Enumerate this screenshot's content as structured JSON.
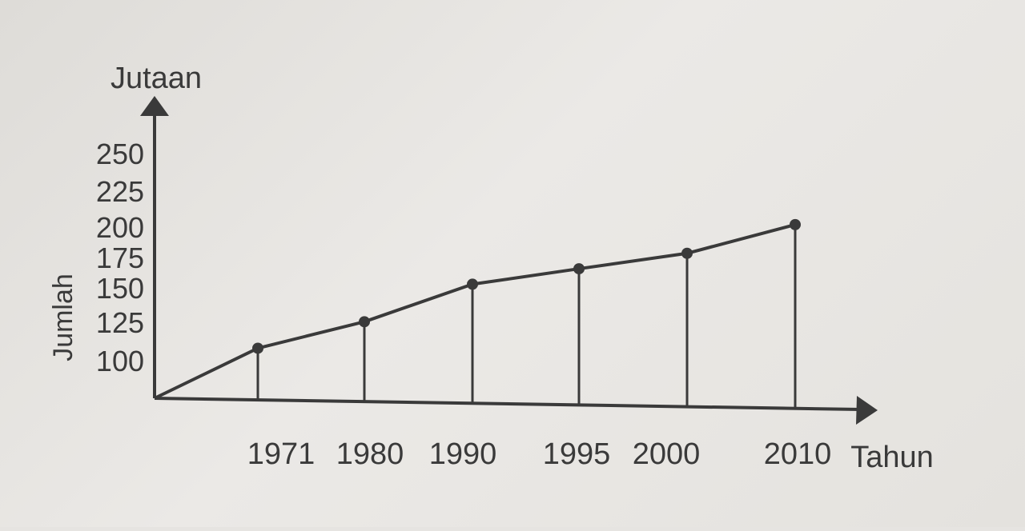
{
  "chart_data": {
    "type": "line",
    "title": "",
    "ylabel_top": "Jutaan",
    "ylabel_side": "Jumlah",
    "xlabel": "Tahun",
    "y_ticks": [
      "250",
      "225",
      "200",
      "175",
      "150",
      "125",
      "100"
    ],
    "x": [
      "1971",
      "1980",
      "1990",
      "1995",
      "2000",
      "2010"
    ],
    "x_tick_labels": [
      "1971",
      "1980",
      "1990",
      "1995",
      "2000",
      "2010"
    ],
    "series": [
      {
        "values": [
          112,
          136,
          170,
          184,
          198,
          224
        ]
      }
    ],
    "origin_value": 0,
    "drop_lines": true,
    "grid": false,
    "line_color": "#3a3a3a"
  }
}
